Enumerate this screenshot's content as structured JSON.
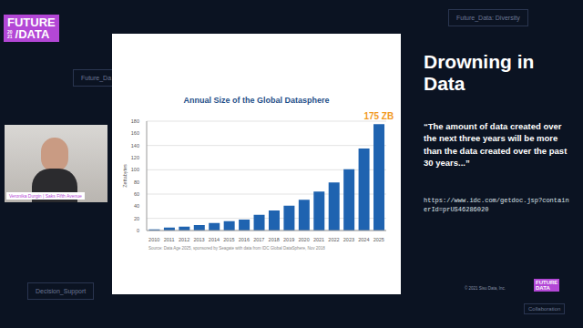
{
  "chart_data": {
    "type": "bar",
    "title": "Annual Size of the Global Datasphere",
    "y_label": "Zettabytes",
    "categories": [
      "2010",
      "2011",
      "2012",
      "2013",
      "2014",
      "2015",
      "2016",
      "2017",
      "2018",
      "2019",
      "2020",
      "2021",
      "2022",
      "2023",
      "2024",
      "2025"
    ],
    "values": [
      2,
      5,
      6.5,
      9,
      12.5,
      15.5,
      18,
      26,
      33,
      41,
      50.5,
      64,
      79,
      101,
      135,
      175
    ],
    "color": "#1f63b0",
    "ylim": [
      0,
      180
    ],
    "yticks": [
      0,
      20,
      40,
      60,
      80,
      100,
      120,
      140,
      160,
      180
    ],
    "grid": true,
    "annotation": {
      "text": "175 ZB",
      "x": "2025",
      "y": 175
    },
    "source": "Source: Data Age 2025, sponsored by Seagate with data from IDC Global DataSphere, Nov 2018"
  },
  "slide": {
    "logo": {
      "line1": "FUTURE",
      "year": [
        "20",
        "21"
      ],
      "line2": "/DATA"
    },
    "background_labels": [
      "Future_Data: Diversity",
      "Future_Da",
      "Decision_Support",
      "Collaboration"
    ],
    "speaker": "Veronika Durgin | Saks Fifth Avenue",
    "title": "Drowning in Data",
    "quote": "“The amount of data created over the next three years will be more than the data created over the past 30 years...”",
    "url": "https://www.idc.com/getdoc.jsp?containerId=prUS46286020",
    "copyright": "© 2021 Sisu Data, Inc.",
    "footer_logo": {
      "line1": "FUTURE",
      "line2": "DATA"
    }
  }
}
